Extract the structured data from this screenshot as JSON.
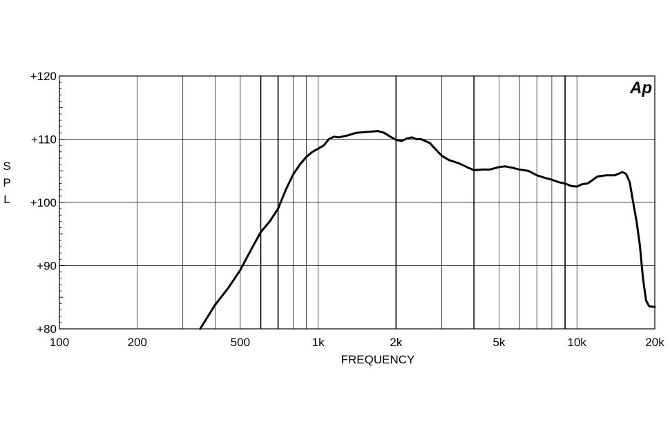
{
  "chart_data": {
    "type": "line",
    "title": "",
    "xlabel": "FREQUENCY",
    "ylabel": "SPL",
    "x_scale": "log",
    "xlim": [
      100,
      20000
    ],
    "ylim": [
      80,
      120
    ],
    "x_ticks": [
      {
        "value": 100,
        "label": "100"
      },
      {
        "value": 200,
        "label": "200"
      },
      {
        "value": 500,
        "label": "500"
      },
      {
        "value": 1000,
        "label": "1k"
      },
      {
        "value": 2000,
        "label": "2k"
      },
      {
        "value": 5000,
        "label": "5k"
      },
      {
        "value": 10000,
        "label": "10k"
      },
      {
        "value": 20000,
        "label": "20k"
      }
    ],
    "y_ticks": [
      {
        "value": 80,
        "label": "+80"
      },
      {
        "value": 90,
        "label": "+90"
      },
      {
        "value": 100,
        "label": "+100"
      },
      {
        "value": 110,
        "label": "+110"
      },
      {
        "value": 120,
        "label": "+120"
      }
    ],
    "logo": "Ap",
    "grid": true,
    "series": [
      {
        "x": [
          350,
          400,
          450,
          500,
          550,
          600,
          650,
          700,
          750,
          800,
          850,
          900,
          950,
          1000,
          1050,
          1100,
          1150,
          1200,
          1300,
          1400,
          1500,
          1600,
          1700,
          1800,
          1900,
          2000,
          2100,
          2200,
          2300,
          2400,
          2500,
          2600,
          2700,
          2800,
          3000,
          3200,
          3500,
          3800,
          4000,
          4300,
          4600,
          5000,
          5300,
          5600,
          6000,
          6500,
          7000,
          7500,
          8000,
          8500,
          9000,
          9500,
          10000,
          10500,
          11000,
          12000,
          13000,
          14000,
          15000,
          15500,
          16000,
          16500,
          17000,
          17500,
          18000,
          18500,
          19000,
          19500,
          20000
        ],
        "y": [
          80,
          83.8,
          86.5,
          89.3,
          92.5,
          95.3,
          97,
          99,
          102,
          104.4,
          106,
          107.2,
          108,
          108.5,
          109,
          110,
          110.4,
          110.3,
          110.6,
          111,
          111.1,
          111.2,
          111.3,
          111,
          110.4,
          109.9,
          109.7,
          110.1,
          110.3,
          110.0,
          110.0,
          109.7,
          109.4,
          108.7,
          107.4,
          106.7,
          106.2,
          105.5,
          105.1,
          105.2,
          105.2,
          105.6,
          105.7,
          105.5,
          105.2,
          105.0,
          104.3,
          103.9,
          103.6,
          103.2,
          103.0,
          102.6,
          102.5,
          102.9,
          103.0,
          104.1,
          104.3,
          104.3,
          104.8,
          104.5,
          103.2,
          100.0,
          97.0,
          93.3,
          88.0,
          84.5,
          83.6,
          83.5,
          83.5
        ]
      }
    ]
  }
}
